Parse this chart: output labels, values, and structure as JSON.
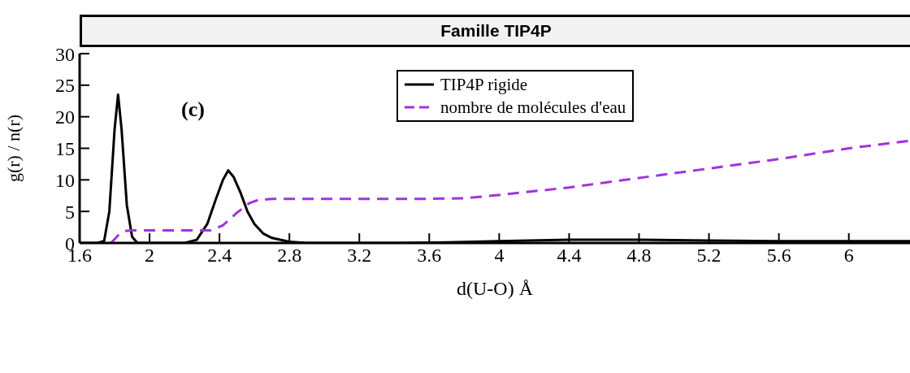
{
  "chart_data": {
    "type": "line",
    "title": "Famille TIP4P",
    "xlabel": "d(U-O) Å",
    "ylabel": "g(r) / n(r)",
    "annotations": [
      "(c)"
    ],
    "xlim": [
      1.6,
      6.35
    ],
    "xticks": [
      1.6,
      2,
      2.4,
      2.8,
      3.2,
      3.6,
      4,
      4.4,
      4.8,
      5.2,
      5.6,
      6
    ],
    "ylim": [
      0,
      30
    ],
    "yticks": [
      0,
      5,
      10,
      15,
      20,
      25,
      30
    ],
    "grid": false,
    "legend": "top",
    "marker": "none",
    "series": [
      {
        "name": "TIP4P rigide",
        "color": "#000000",
        "line_style": "solid",
        "x": [
          1.6,
          1.7,
          1.74,
          1.77,
          1.8,
          1.82,
          1.84,
          1.87,
          1.9,
          1.93,
          2.2,
          2.27,
          2.33,
          2.38,
          2.42,
          2.45,
          2.48,
          2.52,
          2.56,
          2.6,
          2.65,
          2.7,
          2.8,
          2.9,
          3.4,
          3.7,
          4,
          4.4,
          4.8,
          5.2,
          5.6,
          6,
          6.35
        ],
        "values": [
          0,
          0,
          0.3,
          5,
          18,
          23.5,
          18,
          6,
          1,
          0,
          0,
          0.5,
          3,
          7,
          10,
          11.5,
          10.5,
          8,
          5,
          3,
          1.5,
          0.8,
          0.2,
          0,
          0,
          0.1,
          0.3,
          0.5,
          0.5,
          0.4,
          0.3,
          0.3,
          0.3
        ]
      },
      {
        "name": "nombre de molécules d'eau",
        "color": "#a033e0",
        "line_style": "dashed",
        "x": [
          1.78,
          1.82,
          1.86,
          1.9,
          2.35,
          2.42,
          2.5,
          2.57,
          2.62,
          2.7,
          3.6,
          3.8,
          4,
          4.4,
          4.8,
          5.2,
          5.6,
          6,
          6.35
        ],
        "values": [
          0,
          1.2,
          1.9,
          2,
          2,
          2.8,
          4.8,
          6.3,
          6.8,
          7,
          7,
          7.1,
          7.6,
          8.8,
          10.3,
          11.8,
          13.3,
          15,
          16.2
        ]
      }
    ]
  }
}
